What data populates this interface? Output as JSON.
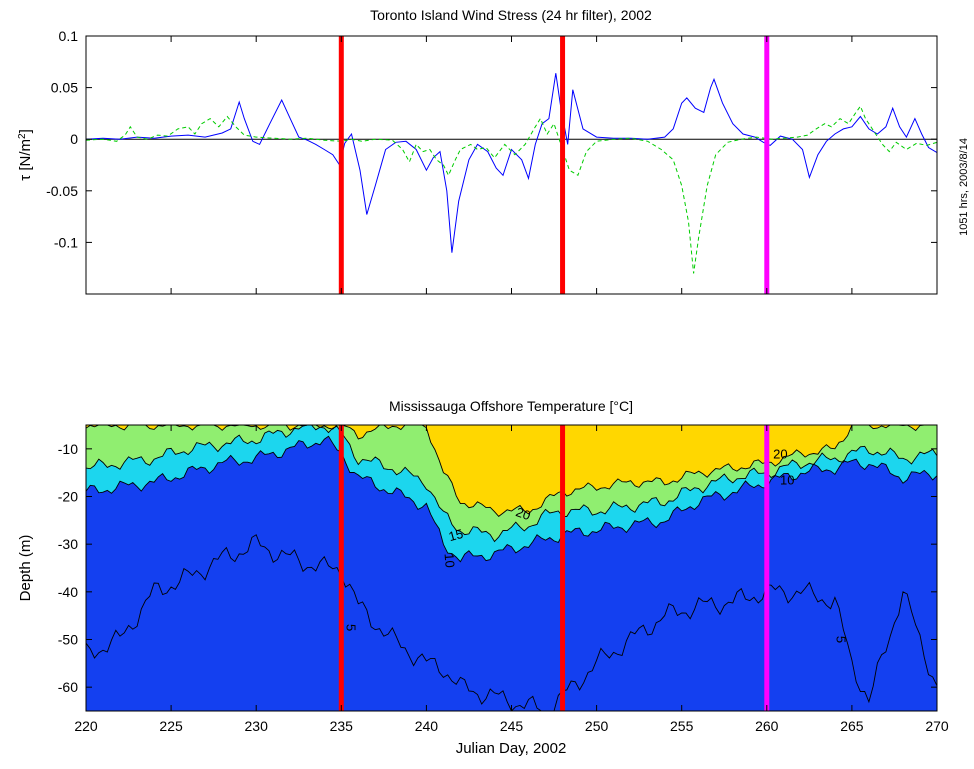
{
  "side_stamp": "1051 hrs, 2003/8/14",
  "colors": {
    "u_series": "#0000ff",
    "v_series": "#00cc00",
    "event_red": "#ff0000",
    "event_magenta": "#ff00ff",
    "band_warm": "#ffd700",
    "band_15_20": "#90ee70",
    "band_10_15": "#1cd6ee",
    "band_cold": "#1440f0"
  },
  "event_lines": [
    {
      "x": 235,
      "color": "#ff0000"
    },
    {
      "x": 248,
      "color": "#ff0000"
    },
    {
      "x": 260,
      "color": "#ff00ff"
    }
  ],
  "chart_data": [
    {
      "type": "line",
      "title": "Toronto Island Wind Stress (24 hr filter), 2002",
      "ylabel": "τ [N/m²]",
      "xlabel": "",
      "xlim": [
        220,
        270
      ],
      "ylim": [
        -0.15,
        0.1
      ],
      "yticks": [
        -0.1,
        -0.05,
        0,
        0.05,
        0.1
      ],
      "ytick_labels": [
        "-0.1",
        "-0.05",
        "0",
        "0.05",
        "0.1"
      ],
      "xticks": [
        220,
        225,
        230,
        235,
        240,
        245,
        250,
        255,
        260,
        265,
        270
      ],
      "grid": false,
      "zero_line": true,
      "series": [
        {
          "style": "solid",
          "color": "#0000ff",
          "points": [
            [
              220,
              0
            ],
            [
              221,
              0.001
            ],
            [
              222,
              0
            ],
            [
              223,
              0.002
            ],
            [
              224,
              0.001
            ],
            [
              225,
              0.003
            ],
            [
              226,
              0.004
            ],
            [
              227,
              0.002
            ],
            [
              228,
              0.006
            ],
            [
              228.5,
              0.01
            ],
            [
              229,
              0.036
            ],
            [
              229.3,
              0.02
            ],
            [
              229.8,
              -0.002
            ],
            [
              230.2,
              -0.005
            ],
            [
              230.8,
              0.015
            ],
            [
              231.5,
              0.038
            ],
            [
              232,
              0.02
            ],
            [
              232.5,
              0.002
            ],
            [
              233,
              -0.001
            ],
            [
              233.5,
              -0.005
            ],
            [
              234,
              -0.01
            ],
            [
              234.5,
              -0.015
            ],
            [
              234.9,
              -0.025
            ],
            [
              235.2,
              -0.004
            ],
            [
              235.6,
              0.005
            ],
            [
              236.1,
              -0.03
            ],
            [
              236.5,
              -0.073
            ],
            [
              237,
              -0.045
            ],
            [
              237.6,
              -0.01
            ],
            [
              238.2,
              -0.003
            ],
            [
              238.8,
              -0.002
            ],
            [
              239.4,
              -0.01
            ],
            [
              240,
              -0.03
            ],
            [
              240.4,
              -0.018
            ],
            [
              240.8,
              -0.012
            ],
            [
              241.2,
              -0.05
            ],
            [
              241.5,
              -0.11
            ],
            [
              241.9,
              -0.06
            ],
            [
              242.5,
              -0.02
            ],
            [
              243,
              -0.005
            ],
            [
              243.6,
              -0.012
            ],
            [
              244.1,
              -0.028
            ],
            [
              244.5,
              -0.035
            ],
            [
              245,
              -0.01
            ],
            [
              245.6,
              -0.02
            ],
            [
              246,
              -0.038
            ],
            [
              246.4,
              -0.005
            ],
            [
              246.8,
              0.015
            ],
            [
              247.2,
              0.02
            ],
            [
              247.6,
              0.064
            ],
            [
              247.9,
              0.03
            ],
            [
              248.3,
              -0.005
            ],
            [
              248.6,
              0.048
            ],
            [
              249.2,
              0.01
            ],
            [
              250,
              0.002
            ],
            [
              251,
              0.001
            ],
            [
              252,
              0.001
            ],
            [
              253,
              0
            ],
            [
              254,
              0.002
            ],
            [
              254.5,
              0.01
            ],
            [
              255,
              0.035
            ],
            [
              255.3,
              0.04
            ],
            [
              255.8,
              0.03
            ],
            [
              256.3,
              0.026
            ],
            [
              256.7,
              0.05
            ],
            [
              256.9,
              0.058
            ],
            [
              257.4,
              0.035
            ],
            [
              258,
              0.015
            ],
            [
              258.6,
              0.005
            ],
            [
              259.3,
              0.002
            ],
            [
              259.8,
              -0.003
            ],
            [
              260.2,
              -0.006
            ],
            [
              260.8,
              0.003
            ],
            [
              261.5,
              0
            ],
            [
              262.1,
              -0.01
            ],
            [
              262.5,
              -0.037
            ],
            [
              263,
              -0.015
            ],
            [
              263.5,
              -0.002
            ],
            [
              264,
              0.005
            ],
            [
              264.5,
              0.01
            ],
            [
              265,
              0.012
            ],
            [
              265.5,
              0.022
            ],
            [
              266,
              0.01
            ],
            [
              266.5,
              0.005
            ],
            [
              267,
              0.012
            ],
            [
              267.4,
              0.03
            ],
            [
              267.8,
              0.012
            ],
            [
              268.2,
              0.002
            ],
            [
              268.7,
              0.02
            ],
            [
              269.1,
              0.005
            ],
            [
              269.5,
              -0.008
            ],
            [
              270,
              -0.013
            ]
          ]
        },
        {
          "style": "dashed",
          "color": "#00cc00",
          "points": [
            [
              220,
              -0.001
            ],
            [
              221,
              0
            ],
            [
              221.8,
              -0.002
            ],
            [
              222.3,
              0.004
            ],
            [
              222.6,
              0.012
            ],
            [
              223,
              0.002
            ],
            [
              223.6,
              0
            ],
            [
              224.2,
              0.004
            ],
            [
              224.8,
              0.003
            ],
            [
              225.4,
              0.01
            ],
            [
              226,
              0.012
            ],
            [
              226.4,
              0.005
            ],
            [
              226.8,
              0.015
            ],
            [
              227.3,
              0.02
            ],
            [
              227.8,
              0.012
            ],
            [
              228.3,
              0.022
            ],
            [
              228.8,
              0.012
            ],
            [
              229.3,
              0.004
            ],
            [
              230,
              0.002
            ],
            [
              231,
              0.001
            ],
            [
              232,
              0
            ],
            [
              233,
              0.001
            ],
            [
              234,
              -0.001
            ],
            [
              235,
              -0.002
            ],
            [
              235.6,
              0
            ],
            [
              236.2,
              -0.002
            ],
            [
              237,
              0
            ],
            [
              238,
              -0.001
            ],
            [
              238.6,
              -0.01
            ],
            [
              239,
              -0.022
            ],
            [
              239.4,
              -0.005
            ],
            [
              239.8,
              -0.012
            ],
            [
              240.2,
              -0.01
            ],
            [
              240.6,
              -0.02
            ],
            [
              241,
              -0.025
            ],
            [
              241.3,
              -0.035
            ],
            [
              241.7,
              -0.02
            ],
            [
              242,
              -0.01
            ],
            [
              242.6,
              -0.005
            ],
            [
              243,
              -0.01
            ],
            [
              243.5,
              -0.008
            ],
            [
              244,
              -0.018
            ],
            [
              244.6,
              -0.005
            ],
            [
              245.2,
              -0.015
            ],
            [
              245.8,
              -0.005
            ],
            [
              246.4,
              0.012
            ],
            [
              246.7,
              0.02
            ],
            [
              247.1,
              0.005
            ],
            [
              247.5,
              0.015
            ],
            [
              248,
              -0.01
            ],
            [
              248.4,
              -0.03
            ],
            [
              248.9,
              -0.035
            ],
            [
              249.4,
              -0.012
            ],
            [
              250,
              -0.002
            ],
            [
              251,
              0
            ],
            [
              252,
              0.001
            ],
            [
              253,
              -0.002
            ],
            [
              253.8,
              -0.01
            ],
            [
              254.5,
              -0.02
            ],
            [
              255,
              -0.045
            ],
            [
              255.4,
              -0.08
            ],
            [
              255.7,
              -0.13
            ],
            [
              256,
              -0.095
            ],
            [
              256.5,
              -0.045
            ],
            [
              257,
              -0.015
            ],
            [
              257.7,
              -0.003
            ],
            [
              258.5,
              0
            ],
            [
              259.4,
              0.002
            ],
            [
              260.3,
              0
            ],
            [
              261,
              0.001
            ],
            [
              261.8,
              0.002
            ],
            [
              262.4,
              0.004
            ],
            [
              262.9,
              0.01
            ],
            [
              263.4,
              0.015
            ],
            [
              263.8,
              0.012
            ],
            [
              264.3,
              0.02
            ],
            [
              264.8,
              0.015
            ],
            [
              265.2,
              0.025
            ],
            [
              265.5,
              0.032
            ],
            [
              265.8,
              0.02
            ],
            [
              266.2,
              0.01
            ],
            [
              266.8,
              -0.005
            ],
            [
              267.2,
              -0.012
            ],
            [
              267.6,
              -0.003
            ],
            [
              268.2,
              -0.01
            ],
            [
              268.8,
              -0.004
            ],
            [
              269.4,
              -0.006
            ],
            [
              270,
              -0.003
            ]
          ]
        }
      ]
    },
    {
      "type": "filled-contour",
      "title": "Mississauga Offshore Temperature [°C]",
      "xlabel": "Julian Day, 2002",
      "ylabel": "Depth (m)",
      "xlim": [
        220,
        270
      ],
      "ylim": [
        -65,
        -5
      ],
      "yticks": [
        -60,
        -50,
        -40,
        -30,
        -20,
        -10
      ],
      "ytick_labels": [
        "-60",
        "-50",
        "-40",
        "-30",
        "-20",
        "-10"
      ],
      "xticks": [
        220,
        225,
        230,
        235,
        240,
        245,
        250,
        255,
        260,
        265,
        270
      ],
      "xtick_labels": [
        "220",
        "225",
        "230",
        "235",
        "240",
        "245",
        "250",
        "255",
        "260",
        "265",
        "270"
      ],
      "contour_labels": [
        {
          "text": "20",
          "x": 245.6,
          "y": -24.5,
          "rot": 20
        },
        {
          "text": "20",
          "x": 260.8,
          "y": -12,
          "rot": 0
        },
        {
          "text": "15",
          "x": 241.8,
          "y": -29,
          "rot": -15
        },
        {
          "text": "10",
          "x": 241.1,
          "y": -33.5,
          "rot": 85
        },
        {
          "text": "10",
          "x": 261.2,
          "y": -17.5,
          "rot": 0
        },
        {
          "text": "5",
          "x": 235.3,
          "y": -47.5,
          "rot": 90
        },
        {
          "text": "5",
          "x": 264.1,
          "y": -50,
          "rot": 90
        }
      ],
      "isotherm_depths": {
        "days": [
          220,
          222,
          224,
          226,
          228,
          230,
          232,
          234,
          235,
          236,
          238,
          240,
          241,
          242,
          244,
          246,
          247,
          248,
          250,
          252,
          254,
          256,
          258,
          260,
          262,
          264,
          265,
          266,
          268,
          270
        ],
        "t20": [
          -5,
          -5,
          -5,
          -5,
          -5,
          -5,
          -5,
          -5,
          -5,
          -7,
          -5,
          -5,
          -15,
          -21,
          -23,
          -23,
          -21,
          -19,
          -18,
          -17,
          -17,
          -15,
          -14,
          -13,
          -11,
          -10,
          -5,
          -5,
          -5,
          -5
        ],
        "t15": [
          -14,
          -13,
          -12,
          -10,
          -9,
          -8,
          -6,
          -5,
          -7,
          -12,
          -14,
          -17,
          -24,
          -27,
          -28,
          -26,
          -24,
          -23,
          -23,
          -22,
          -21,
          -18,
          -16,
          -15,
          -13,
          -12,
          -11,
          -10,
          -12,
          -11
        ],
        "t10": [
          -19,
          -18,
          -17,
          -15,
          -13,
          -12,
          -10,
          -8,
          -11,
          -16,
          -19,
          -22,
          -30,
          -33,
          -32,
          -30,
          -29,
          -28,
          -27,
          -26,
          -25,
          -21,
          -19,
          -17,
          -15,
          -14,
          -13,
          -13,
          -16,
          -15
        ],
        "t5": [
          -53,
          -50,
          -40,
          -37,
          -33,
          -30,
          -33,
          -35,
          -35,
          -43,
          -50,
          -55,
          -56,
          -60,
          -62,
          -64,
          -65,
          -62,
          -55,
          -50,
          -45,
          -43,
          -42,
          -40,
          -40,
          -42,
          -55,
          -63,
          -40,
          -60
        ]
      }
    }
  ]
}
